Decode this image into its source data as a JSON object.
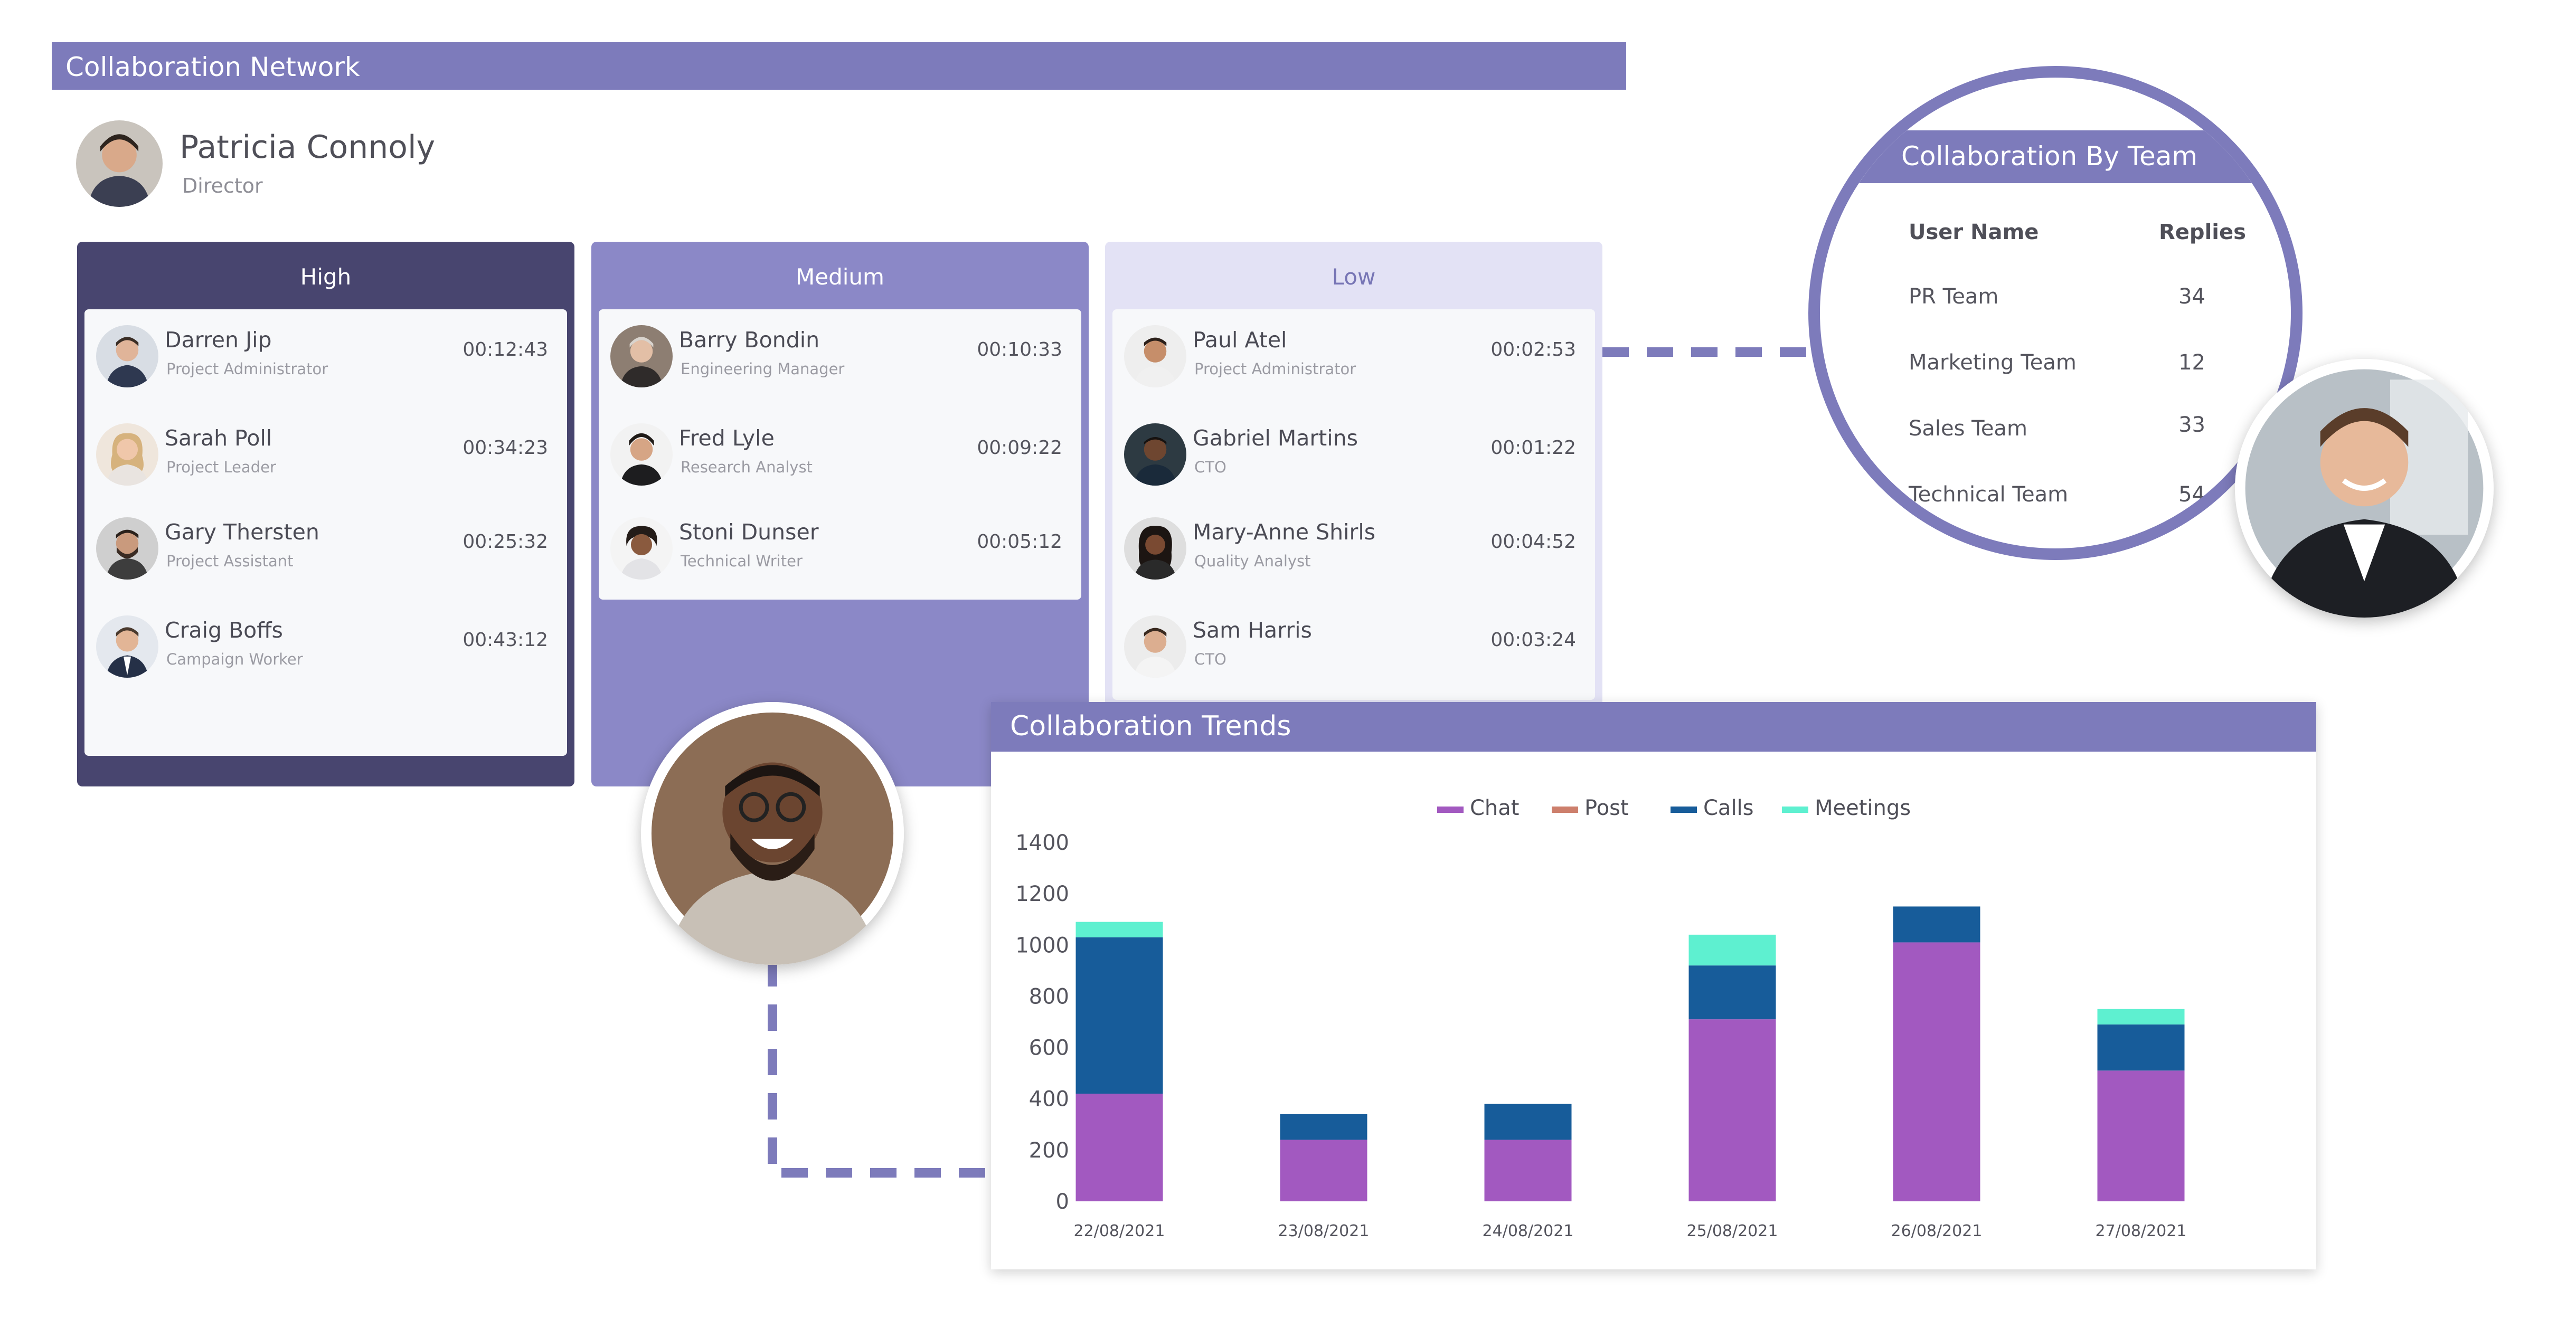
{
  "header": {
    "title": "Collaboration Network"
  },
  "profile": {
    "name": "Patricia Connoly",
    "role": "Director"
  },
  "columns": [
    {
      "title": "High",
      "people": [
        {
          "name": "Darren Jip",
          "role": "Project Administrator",
          "time": "00:12:43"
        },
        {
          "name": "Sarah Poll",
          "role": "Project Leader",
          "time": "00:34:23"
        },
        {
          "name": "Gary Thersten",
          "role": "Project Assistant",
          "time": "00:25:32"
        },
        {
          "name": "Craig Boffs",
          "role": "Campaign Worker",
          "time": "00:43:12"
        }
      ]
    },
    {
      "title": "Medium",
      "people": [
        {
          "name": "Barry Bondin",
          "role": "Engineering Manager",
          "time": "00:10:33"
        },
        {
          "name": "Fred Lyle",
          "role": "Research Analyst",
          "time": "00:09:22"
        },
        {
          "name": "Stoni Dunser",
          "role": "Technical Writer",
          "time": "00:05:12"
        }
      ]
    },
    {
      "title": "Low",
      "people": [
        {
          "name": "Paul Atel",
          "role": "Project Administrator",
          "time": "00:02:53"
        },
        {
          "name": "Gabriel Martins",
          "role": "CTO",
          "time": "00:01:22"
        },
        {
          "name": "Mary-Anne Shirls",
          "role": "Quality Analyst",
          "time": "00:04:52"
        },
        {
          "name": "Sam Harris",
          "role": "CTO",
          "time": "00:03:24"
        }
      ]
    }
  ],
  "team_panel": {
    "title": "Collaboration By Team",
    "col_user": "User Name",
    "col_replies": "Replies",
    "rows": [
      {
        "team": "PR Team",
        "replies": "34"
      },
      {
        "team": "Marketing Team",
        "replies": "12"
      },
      {
        "team": "Sales Team",
        "replies": "33"
      },
      {
        "team": "Technical Team",
        "replies": "54"
      }
    ]
  },
  "trends": {
    "title": "Collaboration Trends"
  },
  "colors": {
    "accent": "#7d7bbb",
    "high": "#48456f",
    "medium": "#8b88c7",
    "low": "#e3e2f5",
    "chat": "#a259c0",
    "post": "#cd7f6c",
    "calls": "#175c9a",
    "meetings": "#5ef0d0"
  },
  "chart_data": {
    "type": "bar",
    "stacked": true,
    "title": "",
    "xlabel": "",
    "ylabel": "",
    "categories": [
      "22/08/2021",
      "23/08/2021",
      "24/08/2021",
      "25/08/2021",
      "26/08/2021",
      "27/08/2021"
    ],
    "series": [
      {
        "name": "Chat",
        "values": [
          420,
          240,
          240,
          710,
          1010,
          510
        ]
      },
      {
        "name": "Post",
        "values": [
          0,
          0,
          0,
          0,
          0,
          0
        ]
      },
      {
        "name": "Calls",
        "values": [
          610,
          100,
          140,
          210,
          140,
          180
        ]
      },
      {
        "name": "Meetings",
        "values": [
          60,
          0,
          0,
          120,
          0,
          60
        ]
      }
    ],
    "ylim": [
      0,
      1400
    ],
    "yticks": [
      0,
      200,
      400,
      600,
      800,
      1000,
      1200,
      1400
    ],
    "legend_position": "top",
    "grid": false
  }
}
